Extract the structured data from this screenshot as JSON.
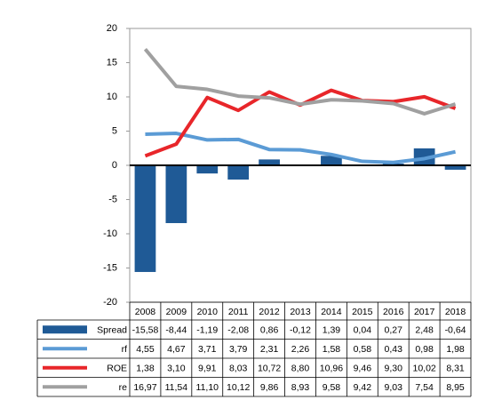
{
  "chart_data": {
    "type": "bar",
    "categories": [
      "2008",
      "2009",
      "2010",
      "2011",
      "2012",
      "2013",
      "2014",
      "2015",
      "2016",
      "2017",
      "2018"
    ],
    "series": [
      {
        "name": "Spread",
        "type": "bar",
        "color": "#1f5a96",
        "values": [
          -15.58,
          -8.44,
          -1.19,
          -2.08,
          0.86,
          -0.12,
          1.39,
          0.04,
          0.27,
          2.48,
          -0.64
        ],
        "value_labels": [
          "-15,58",
          "-8,44",
          "-1,19",
          "-2,08",
          "0,86",
          "-0,12",
          "1,39",
          "0,04",
          "0,27",
          "2,48",
          "-0,64"
        ]
      },
      {
        "name": "rf",
        "type": "line",
        "color": "#5b9bd5",
        "values": [
          4.55,
          4.67,
          3.71,
          3.79,
          2.31,
          2.26,
          1.58,
          0.58,
          0.43,
          0.98,
          1.98
        ],
        "value_labels": [
          "4,55",
          "4,67",
          "3,71",
          "3,79",
          "2,31",
          "2,26",
          "1,58",
          "0,58",
          "0,43",
          "0,98",
          "1,98"
        ]
      },
      {
        "name": "ROE",
        "type": "line",
        "color": "#e8262a",
        "values": [
          1.38,
          3.1,
          9.91,
          8.03,
          10.72,
          8.8,
          10.96,
          9.46,
          9.3,
          10.02,
          8.31
        ],
        "value_labels": [
          "1,38",
          "3,10",
          "9,91",
          "8,03",
          "10,72",
          "8,80",
          "10,96",
          "9,46",
          "9,30",
          "10,02",
          "8,31"
        ]
      },
      {
        "name": "re",
        "type": "line",
        "color": "#a0a0a0",
        "values": [
          16.97,
          11.54,
          11.1,
          10.12,
          9.86,
          8.93,
          9.58,
          9.42,
          9.03,
          7.54,
          8.95
        ],
        "value_labels": [
          "16,97",
          "11,54",
          "11,10",
          "10,12",
          "9,86",
          "8,93",
          "9,58",
          "9,42",
          "9,03",
          "7,54",
          "8,95"
        ]
      }
    ],
    "ylim": [
      -20,
      20
    ],
    "yticks": [
      20,
      15,
      10,
      5,
      0,
      -5,
      -10,
      -15,
      -20
    ],
    "grid": false
  }
}
